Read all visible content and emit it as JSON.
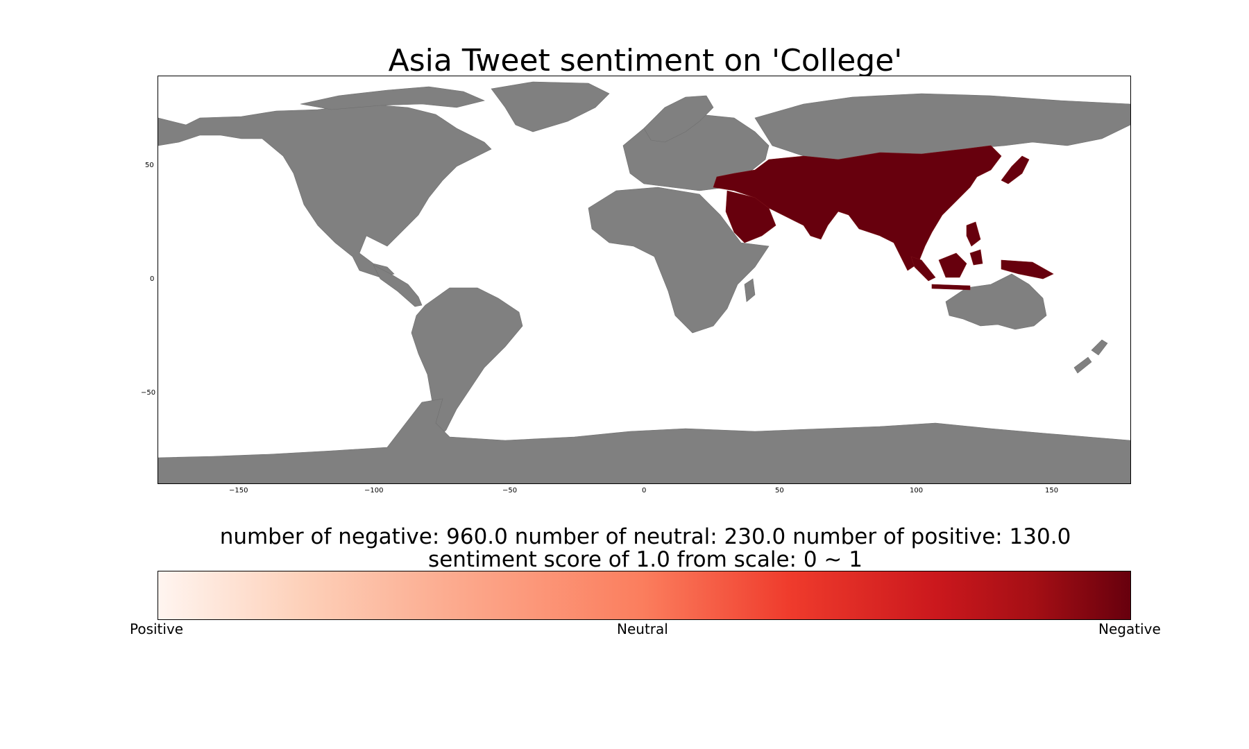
{
  "title": "Asia Tweet sentiment on 'College'",
  "map": {
    "x_ticks": [
      "−150",
      "−100",
      "−50",
      "0",
      "50",
      "100",
      "150"
    ],
    "y_ticks": [
      "50",
      "0",
      "−50"
    ],
    "xlim": [
      -180,
      180
    ],
    "ylim": [
      -90,
      90
    ],
    "land_color": "#808080",
    "highlight_color": "#67000d",
    "highlighted_region": "Asia"
  },
  "stats": {
    "counts_line": "number of negative: 960.0 number of neutral: 230.0 number of positive: 130.0",
    "score_line": "sentiment score of 1.0 from scale: 0 ~ 1"
  },
  "colorbar": {
    "left_label": "Positive",
    "mid_label": "Neutral",
    "right_label": "Negative",
    "colormap": "Reds",
    "score": 1.0
  }
}
